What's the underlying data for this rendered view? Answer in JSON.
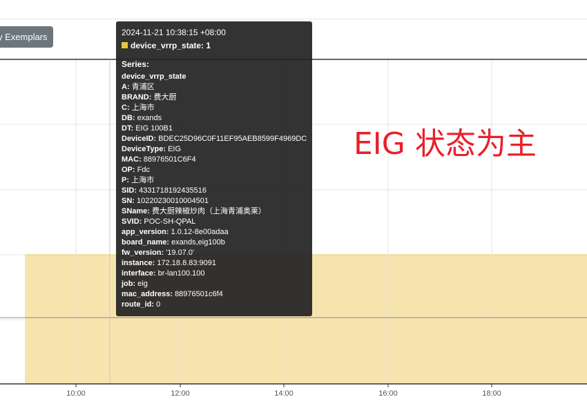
{
  "toolbar": {
    "exemplars_label": "y Exemplars"
  },
  "chart_data": {
    "type": "area",
    "x_ticks": [
      "10:00",
      "12:00",
      "14:00",
      "16:00",
      "18:00"
    ],
    "series": [
      {
        "name": "device_vrrp_state",
        "values": [
          1
        ],
        "color": "#f7e3ad"
      }
    ],
    "hover_time": "2024-11-21 10:38:15 +08:00",
    "grid": true
  },
  "tooltip": {
    "time": "2024-11-21 10:38:15 +08:00",
    "series_name": "device_vrrp_state",
    "value": "1",
    "series_heading": "Series:",
    "metric": "device_vrrp_state",
    "labels": [
      {
        "key": "A",
        "value": "青浦区"
      },
      {
        "key": "BRAND",
        "value": "费大厨"
      },
      {
        "key": "C",
        "value": "上海市"
      },
      {
        "key": "DB",
        "value": "exands"
      },
      {
        "key": "DT",
        "value": "EIG 100B1"
      },
      {
        "key": "DeviceID",
        "value": "BDEC25D96C0F11EF95AEB8599F4969DC"
      },
      {
        "key": "DeviceType",
        "value": "EIG"
      },
      {
        "key": "MAC",
        "value": "88976501C6F4"
      },
      {
        "key": "OP",
        "value": "Fdc"
      },
      {
        "key": "P",
        "value": "上海市"
      },
      {
        "key": "SID",
        "value": "4331718192435516"
      },
      {
        "key": "SN",
        "value": "10220230010004501"
      },
      {
        "key": "SName",
        "value": "费大厨辣椒炒肉（上海青浦奥莱）"
      },
      {
        "key": "SVID",
        "value": "POC-SH-QPAL"
      },
      {
        "key": "app_version",
        "value": "1.0.12-8e00adaa"
      },
      {
        "key": "board_name",
        "value": "exands,eig100b"
      },
      {
        "key": "fw_version",
        "value": "'19.07.0'"
      },
      {
        "key": "instance",
        "value": "172.18.8.83:9091"
      },
      {
        "key": "interface",
        "value": "br-lan100.100"
      },
      {
        "key": "job",
        "value": "eig"
      },
      {
        "key": "mac_address",
        "value": "88976501c6f4"
      },
      {
        "key": "route_id",
        "value": "0"
      }
    ]
  },
  "annotation": {
    "text": "EIG 状态为主",
    "color": "#e8202a"
  }
}
